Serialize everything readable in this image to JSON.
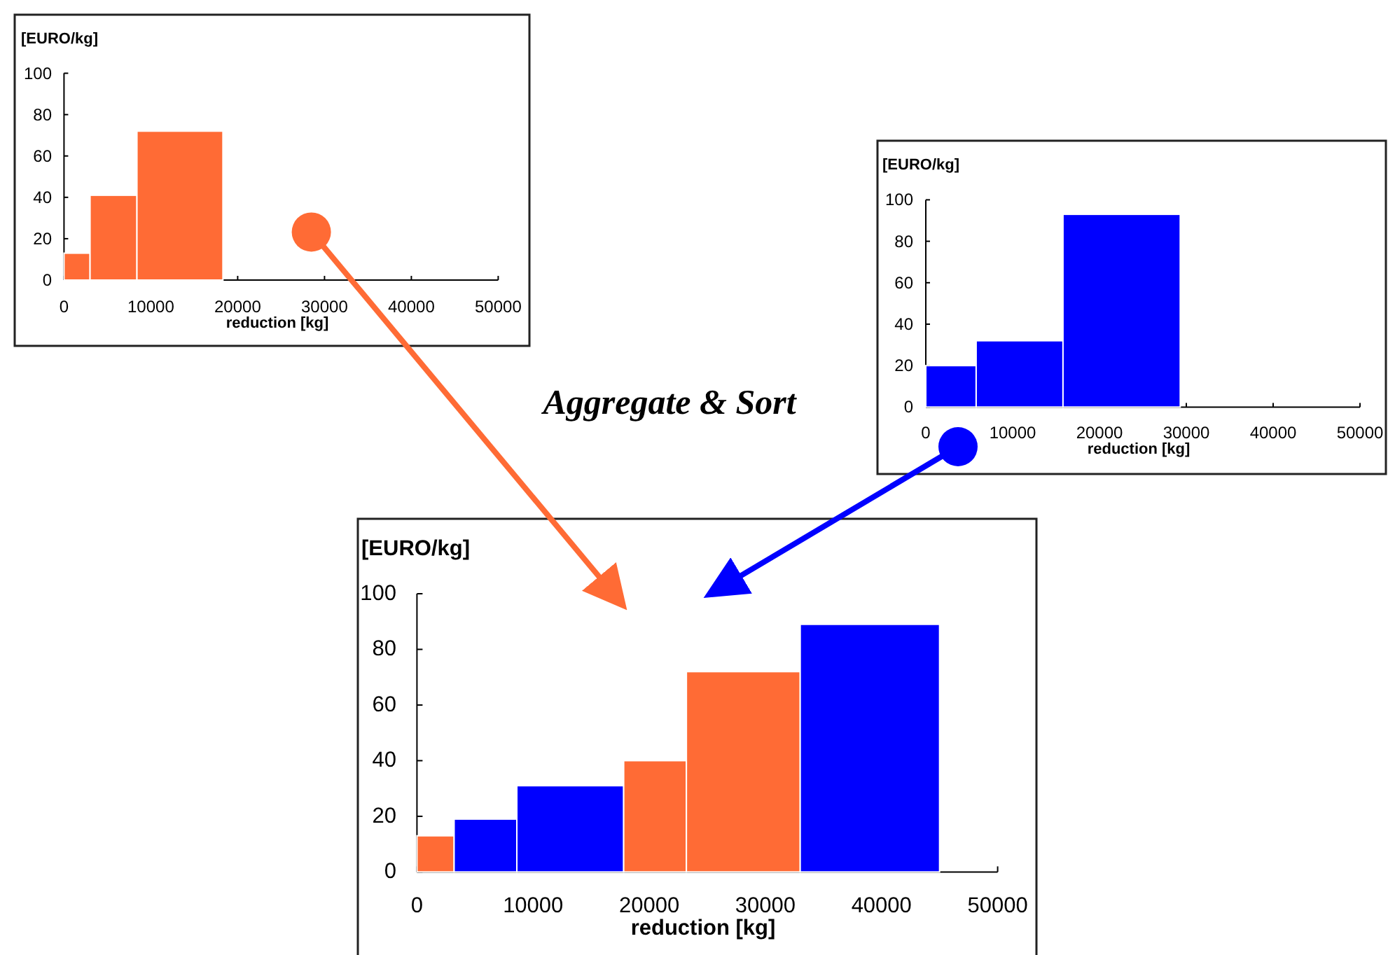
{
  "chart_data": [
    {
      "type": "histogram",
      "xlabel": "reduction [kg]",
      "ylabel": "[EURO/kg]",
      "bins": [
        0,
        3000,
        8400,
        18300
      ],
      "values": [
        13,
        41,
        72
      ],
      "color": "#ff6b35",
      "xlim": [
        0,
        50000
      ],
      "xticks": [
        0,
        10000,
        20000,
        30000,
        40000,
        50000
      ],
      "ylim": [
        0,
        100
      ],
      "yticks": [
        0,
        20,
        40,
        60,
        80,
        100
      ]
    },
    {
      "type": "histogram",
      "xlabel": "reduction [kg]",
      "ylabel": "[EURO/kg]",
      "bins": [
        0,
        5800,
        15800,
        29300
      ],
      "values": [
        20,
        32,
        93
      ],
      "color": "#0000ff",
      "xlim": [
        0,
        50000
      ],
      "xticks": [
        0,
        10000,
        20000,
        30000,
        40000,
        50000
      ],
      "ylim": [
        0,
        100
      ],
      "yticks": [
        0,
        20,
        40,
        60,
        80,
        100
      ]
    },
    {
      "type": "histogram",
      "xlabel": "reduction [kg]",
      "ylabel": "[EURO/kg]",
      "bins": [
        0,
        3200,
        8600,
        17800,
        23200,
        33000,
        45000
      ],
      "values": [
        13,
        19,
        31,
        40,
        72,
        89
      ],
      "colors": [
        "#ff6b35",
        "#0000ff",
        "#0000ff",
        "#ff6b35",
        "#ff6b35",
        "#0000ff"
      ],
      "xlim": [
        0,
        50000
      ],
      "xticks": [
        0,
        10000,
        20000,
        30000,
        40000,
        50000
      ],
      "ylim": [
        0,
        100
      ],
      "yticks": [
        0,
        20,
        40,
        60,
        80,
        100
      ],
      "annotations": [
        "Aggregate & Sort"
      ]
    }
  ]
}
